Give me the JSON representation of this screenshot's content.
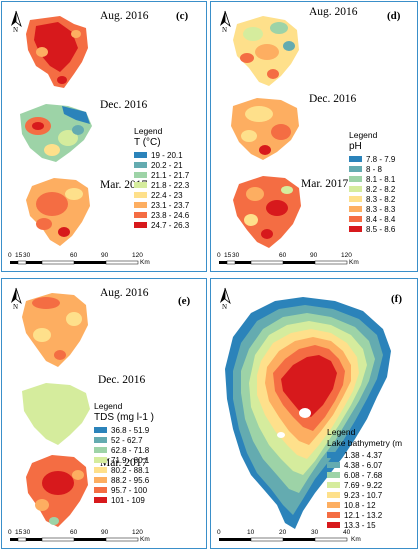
{
  "panels": {
    "c": {
      "label": "(c)",
      "dates": [
        "Aug. 2016",
        "Dec. 2016",
        "Mar. 2017"
      ],
      "legend_title": "Legend",
      "variable": "T (°C)",
      "classes": [
        {
          "label": "19 - 20.1",
          "color": "#2b83ba"
        },
        {
          "label": "20.2 - 21",
          "color": "#64abb0"
        },
        {
          "label": "21.1 - 21.7",
          "color": "#9dd3a7"
        },
        {
          "label": "21.8 - 22.3",
          "color": "#d5ec9d"
        },
        {
          "label": "22.4 - 23",
          "color": "#fee08b"
        },
        {
          "label": "23.1 - 23.7",
          "color": "#fdae61"
        },
        {
          "label": "23.8 - 24.6",
          "color": "#f46d43"
        },
        {
          "label": "24.7 - 26.3",
          "color": "#d7191c"
        }
      ],
      "scale_ticks": [
        "0",
        "15",
        "30",
        "60",
        "90",
        "120"
      ],
      "scale_unit": "Km",
      "north": "N"
    },
    "d": {
      "label": "(d)",
      "dates": [
        "Aug. 2016",
        "Dec. 2016",
        "Mar. 2017"
      ],
      "legend_title": "Legend",
      "variable": "pH",
      "classes": [
        {
          "label": "7.8 - 7.9",
          "color": "#2b83ba"
        },
        {
          "label": "8 - 8",
          "color": "#64abb0"
        },
        {
          "label": "8.1 - 8.1",
          "color": "#9dd3a7"
        },
        {
          "label": "8.2 - 8.2",
          "color": "#d5ec9d"
        },
        {
          "label": "8.3 - 8.2",
          "color": "#fee08b"
        },
        {
          "label": "8.3 - 8.3",
          "color": "#fdae61"
        },
        {
          "label": "8.4 - 8.4",
          "color": "#f46d43"
        },
        {
          "label": "8.5 - 8.6",
          "color": "#d7191c"
        }
      ],
      "scale_ticks": [
        "0",
        "15",
        "30",
        "60",
        "90",
        "120"
      ],
      "scale_unit": "Km",
      "north": "N"
    },
    "e": {
      "label": "(e)",
      "dates": [
        "Aug. 2016",
        "Dec. 2016",
        "Mar. 2017"
      ],
      "legend_title": "Legend",
      "variable": "TDS (mg l-1  )",
      "classes": [
        {
          "label": "36.8 - 51.9",
          "color": "#2b83ba"
        },
        {
          "label": "52 - 62.7",
          "color": "#64abb0"
        },
        {
          "label": "62.8 - 71.8",
          "color": "#9dd3a7"
        },
        {
          "label": "71.9 - 80.1",
          "color": "#d5ec9d"
        },
        {
          "label": "80.2 - 88.1",
          "color": "#fee08b"
        },
        {
          "label": "88.2 - 95.6",
          "color": "#fdae61"
        },
        {
          "label": "95.7 - 100",
          "color": "#f46d43"
        },
        {
          "label": "101 - 109",
          "color": "#d7191c"
        }
      ],
      "scale_ticks": [
        "0",
        "15",
        "30",
        "60",
        "90",
        "120"
      ],
      "scale_unit": "Km",
      "north": "N"
    },
    "f": {
      "label": "(f)",
      "legend_title": "Legend",
      "variable": "Lake bathymetry (m",
      "classes": [
        {
          "label": "1.38 - 4.37",
          "color": "#2b83ba"
        },
        {
          "label": "4.38 - 6.07",
          "color": "#64abb0"
        },
        {
          "label": "6.08 - 7.68",
          "color": "#9dd3a7"
        },
        {
          "label": "7.69 - 9.22",
          "color": "#d5ec9d"
        },
        {
          "label": "9.23 - 10.7",
          "color": "#fee08b"
        },
        {
          "label": "10.8 - 12",
          "color": "#fdae61"
        },
        {
          "label": "12.1 - 13.2",
          "color": "#f46d43"
        },
        {
          "label": "13.3 - 15",
          "color": "#d7191c"
        }
      ],
      "scale_ticks": [
        "0",
        "10",
        "20",
        "30",
        "40"
      ],
      "scale_unit": "Km",
      "north": "N"
    }
  }
}
